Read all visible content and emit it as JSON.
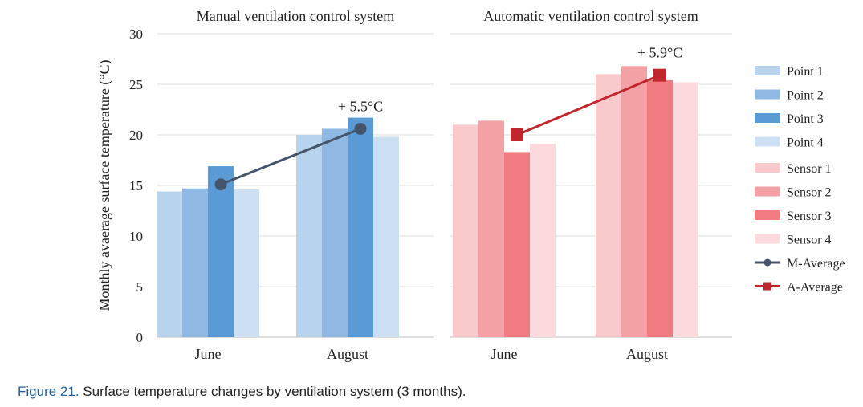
{
  "caption": {
    "label": "Figure 21.",
    "text": "Surface temperature changes by ventilation system (3 months)."
  },
  "chart_data": {
    "type": "bar",
    "ylabel": "Monthly avaerage surface temperature (°C)",
    "ylim": [
      0,
      30
    ],
    "yticks": [
      0,
      5,
      10,
      15,
      20,
      25,
      30
    ],
    "grid": true,
    "legend_position": "right",
    "panels": [
      {
        "title": "Manual ventilation control system",
        "categories": [
          "June",
          "August"
        ],
        "series": [
          {
            "name": "Point 1",
            "values": [
              14.4,
              20.0
            ],
            "color": "#b7d3ee"
          },
          {
            "name": "Point 2",
            "values": [
              14.7,
              20.6
            ],
            "color": "#8fb8e3"
          },
          {
            "name": "Point 3",
            "values": [
              16.9,
              21.7
            ],
            "color": "#5b9bd5"
          },
          {
            "name": "Point 4",
            "values": [
              14.6,
              19.8
            ],
            "color": "#cde0f3"
          }
        ],
        "average": {
          "name": "M-Average",
          "values": [
            15.1,
            20.6
          ],
          "color": "#44546a",
          "marker": "circle"
        },
        "annotation": "+ 5.5°C"
      },
      {
        "title": "Automatic ventilation control system",
        "categories": [
          "June",
          "August"
        ],
        "series": [
          {
            "name": "Sensor 1",
            "values": [
              21.0,
              26.0
            ],
            "color": "#f9c9cc"
          },
          {
            "name": "Sensor 2",
            "values": [
              21.4,
              26.8
            ],
            "color": "#f4a1a5"
          },
          {
            "name": "Sensor 3",
            "values": [
              18.3,
              25.4
            ],
            "color": "#f07c82"
          },
          {
            "name": "Sensor 4",
            "values": [
              19.1,
              25.2
            ],
            "color": "#fbd9dc"
          }
        ],
        "average": {
          "name": "A-Average",
          "values": [
            20.0,
            25.9
          ],
          "color": "#c0282d",
          "marker": "square"
        },
        "annotation": "+ 5.9°C"
      }
    ]
  }
}
